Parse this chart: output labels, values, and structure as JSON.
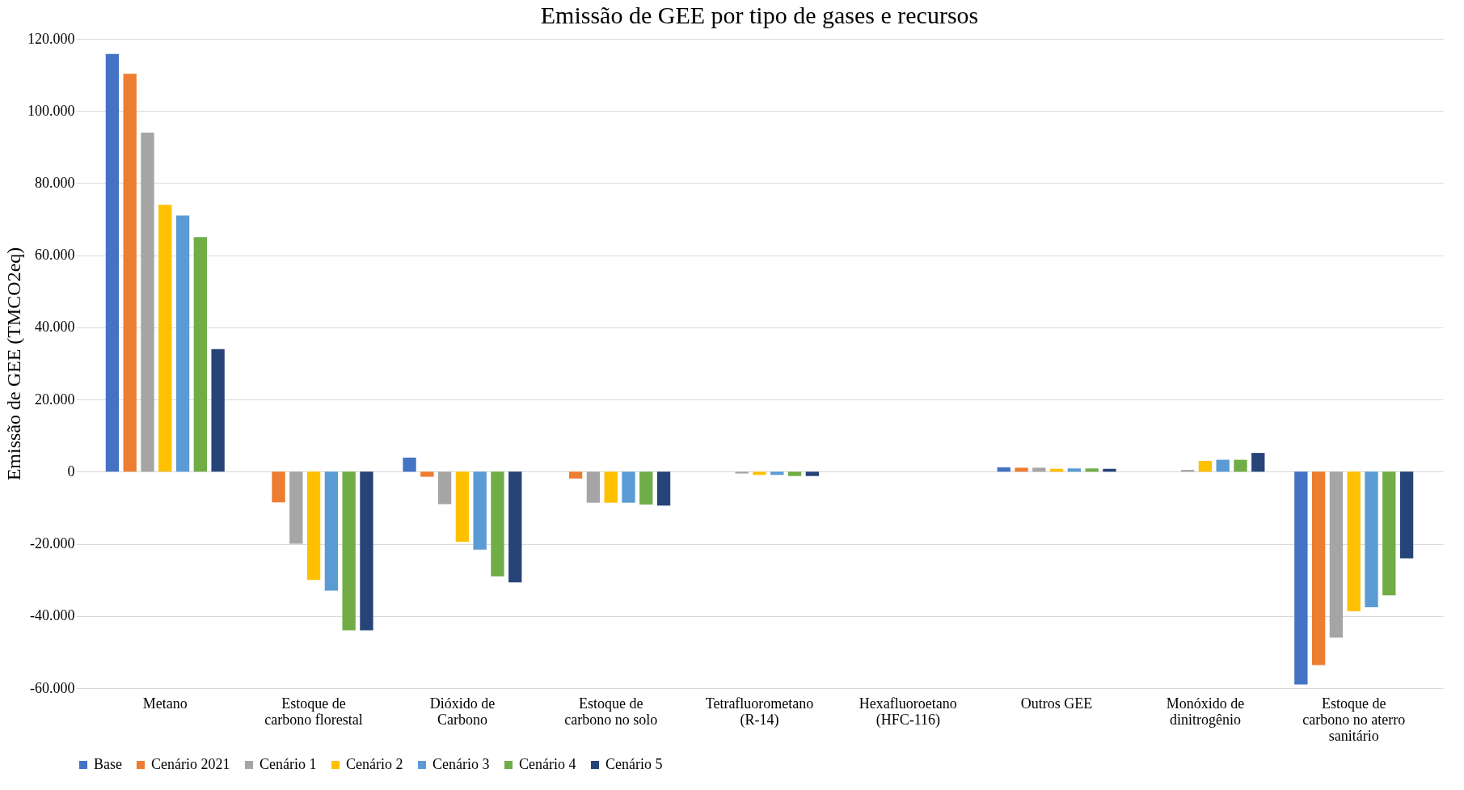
{
  "chart_data": {
    "type": "bar",
    "title": "Emissão de GEE por tipo de gases e recursos",
    "ylabel": "Emissão de GEE (TMCO2eq)",
    "categories": [
      "Metano",
      "Estoque de carbono florestal",
      "Dióxido de Carbono",
      "Estoque de carbono no solo",
      "Tetrafluorometano (R-14)",
      "Hexafluoroetano (HFC-116)",
      "Outros GEE",
      "Monóxido de dinitrogênio",
      "Estoque de carbono no aterro sanitário"
    ],
    "series": [
      {
        "name": "Base",
        "color": "#4472c4",
        "values": [
          115800,
          0,
          3900,
          0,
          0,
          0,
          1200,
          0,
          -59000
        ]
      },
      {
        "name": "Cenário 2021",
        "color": "#ed7d31",
        "values": [
          110300,
          -8500,
          -1400,
          -1900,
          0,
          0,
          1100,
          0,
          -53600
        ]
      },
      {
        "name": "Cenário 1",
        "color": "#a5a5a5",
        "values": [
          94000,
          -20000,
          -9000,
          -8600,
          -500,
          0,
          1100,
          500,
          -46000
        ]
      },
      {
        "name": "Cenário 2",
        "color": "#ffc000",
        "values": [
          74000,
          -30000,
          -19400,
          -8600,
          -900,
          0,
          800,
          3000,
          -38700
        ]
      },
      {
        "name": "Cenário 3",
        "color": "#5b9bd5",
        "values": [
          71000,
          -33000,
          -21600,
          -8600,
          -900,
          0,
          900,
          3300,
          -37600
        ]
      },
      {
        "name": "Cenário 4",
        "color": "#70ad47",
        "values": [
          65000,
          -44000,
          -29000,
          -9100,
          -1200,
          0,
          900,
          3300,
          -34300
        ]
      },
      {
        "name": "Cenário 5",
        "color": "#264478",
        "values": [
          34000,
          -44000,
          -30700,
          -9400,
          -1200,
          0,
          800,
          5200,
          -24000
        ]
      }
    ],
    "ylim": [
      -60000,
      120000
    ],
    "yticks": [
      {
        "value": -60000,
        "label": "-60.000"
      },
      {
        "value": -40000,
        "label": "-40.000"
      },
      {
        "value": -20000,
        "label": "-20.000"
      },
      0,
      {
        "value": 20000,
        "label": "20.000"
      },
      {
        "value": 40000,
        "label": "40.000"
      },
      {
        "value": 60000,
        "label": "60.000"
      },
      {
        "value": 80000,
        "label": "80.000"
      },
      {
        "value": 100000,
        "label": "100.000"
      },
      {
        "value": 120000,
        "label": "120.000"
      }
    ],
    "grid": "y",
    "legend": "bottom"
  }
}
